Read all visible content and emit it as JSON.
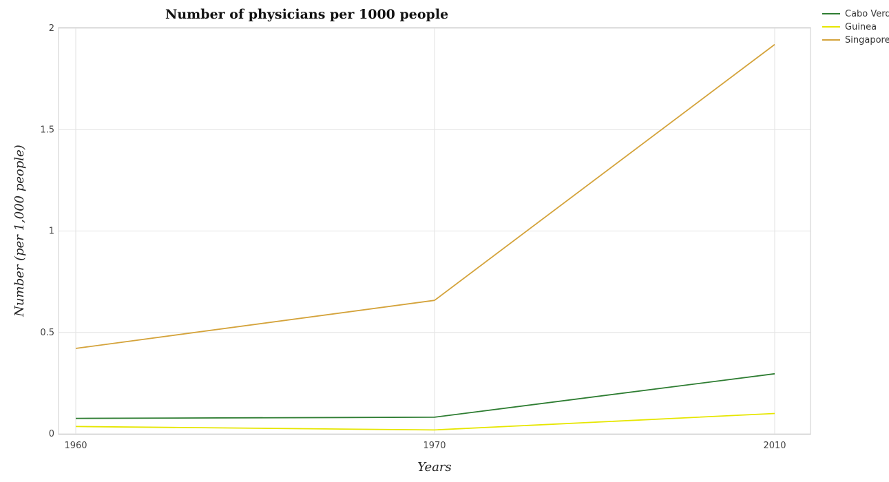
{
  "chart_data": {
    "type": "line",
    "title": "Number of physicians per 1000 people",
    "xlabel": "Years",
    "ylabel": "Number (per 1,000 people)",
    "x": [
      "1960",
      "1970",
      "2010"
    ],
    "ylim": [
      0,
      2.0
    ],
    "yticks": [
      0,
      0.5,
      1,
      1.5,
      2
    ],
    "ytick_labels": [
      "0",
      "0.5",
      "1",
      "1.5",
      "2"
    ],
    "grid": true,
    "legend_position": "top-right",
    "series": [
      {
        "name": "Cabo Verde",
        "color": "#2e7d32",
        "values": [
          0.076,
          0.082,
          0.296
        ]
      },
      {
        "name": "Guinea",
        "color": "#e6e600",
        "values": [
          0.036,
          0.019,
          0.1
        ]
      },
      {
        "name": "Singapore",
        "color": "#d4a33b",
        "values": [
          0.421,
          0.658,
          1.92
        ]
      }
    ]
  }
}
